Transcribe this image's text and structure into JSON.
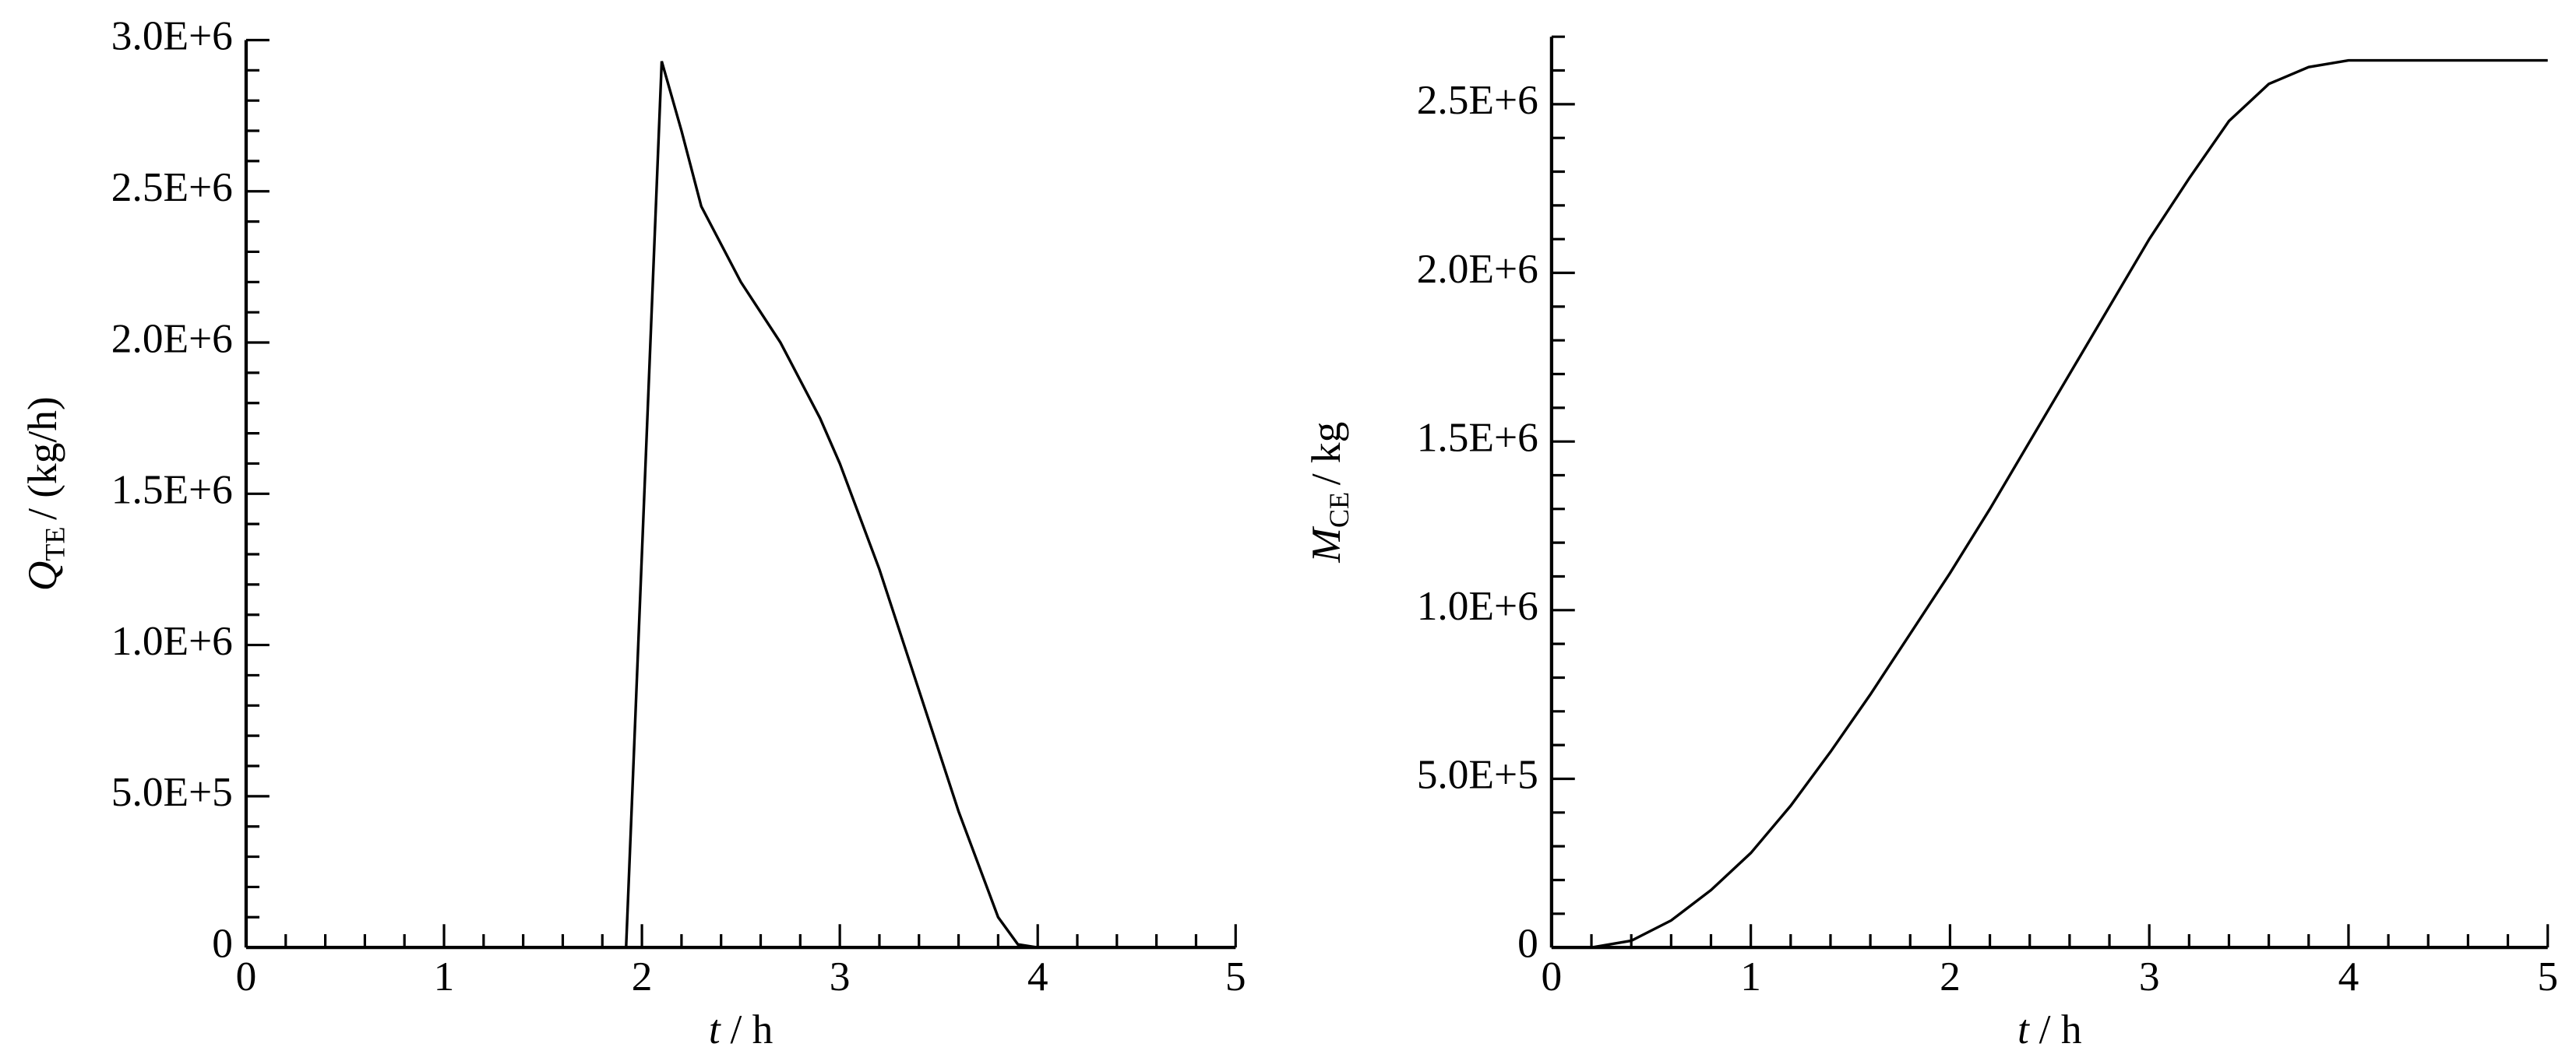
{
  "chart_data": [
    {
      "type": "line",
      "xlabel": {
        "symbol": "t",
        "unit": "/ h"
      },
      "ylabel": {
        "symbol": "Q",
        "subscript": "TE",
        "unit": "/ (kg/h)"
      },
      "x": [
        0,
        1.9,
        1.92,
        2.1,
        2.2,
        2.3,
        2.5,
        2.7,
        2.9,
        3.0,
        3.2,
        3.4,
        3.6,
        3.8,
        3.9,
        4.0,
        5
      ],
      "series": [
        {
          "color": "#000000",
          "values": [
            0,
            0,
            0,
            2930000,
            2700000,
            2450000,
            2200000,
            2000000,
            1750000,
            1600000,
            1250000,
            850000,
            450000,
            100000,
            10000,
            0,
            0
          ]
        }
      ],
      "xlim": [
        0,
        5
      ],
      "xticks": [
        0,
        1,
        2,
        3,
        4,
        5
      ],
      "ylim": [
        0,
        3000000
      ],
      "yticks": [
        0,
        {
          "value": 500000,
          "label": "5.0E+5"
        },
        {
          "value": 1000000,
          "label": "1.0E+6"
        },
        {
          "value": 1500000,
          "label": "1.5E+6"
        },
        {
          "value": 2000000,
          "label": "2.0E+6"
        },
        {
          "value": 2500000,
          "label": "2.5E+6"
        },
        {
          "value": 3000000,
          "label": "3.0E+6"
        }
      ]
    },
    {
      "type": "line",
      "xlabel": {
        "symbol": "t",
        "unit": "/ h"
      },
      "ylabel": {
        "symbol": "M",
        "subscript": "CE",
        "unit": "/ kg"
      },
      "x": [
        0,
        0.2,
        0.4,
        0.6,
        0.8,
        1.0,
        1.2,
        1.4,
        1.6,
        1.8,
        2.0,
        2.2,
        2.4,
        2.6,
        2.8,
        3.0,
        3.2,
        3.4,
        3.6,
        3.8,
        4.0,
        5
      ],
      "series": [
        {
          "color": "#000000",
          "values": [
            0,
            0,
            20000,
            80000,
            170000,
            280000,
            420000,
            580000,
            750000,
            930000,
            1110000,
            1300000,
            1500000,
            1700000,
            1900000,
            2100000,
            2280000,
            2450000,
            2560000,
            2610000,
            2630000,
            2630000
          ]
        }
      ],
      "xlim": [
        0,
        5
      ],
      "xticks": [
        0,
        1,
        2,
        3,
        4,
        5
      ],
      "ylim": [
        0,
        2700000
      ],
      "yticks": [
        0,
        {
          "value": 500000,
          "label": "5.0E+5"
        },
        {
          "value": 1000000,
          "label": "1.0E+6"
        },
        {
          "value": 1500000,
          "label": "1.5E+6"
        },
        {
          "value": 2000000,
          "label": "2.0E+6"
        },
        {
          "value": 2500000,
          "label": "2.5E+6"
        }
      ]
    }
  ]
}
